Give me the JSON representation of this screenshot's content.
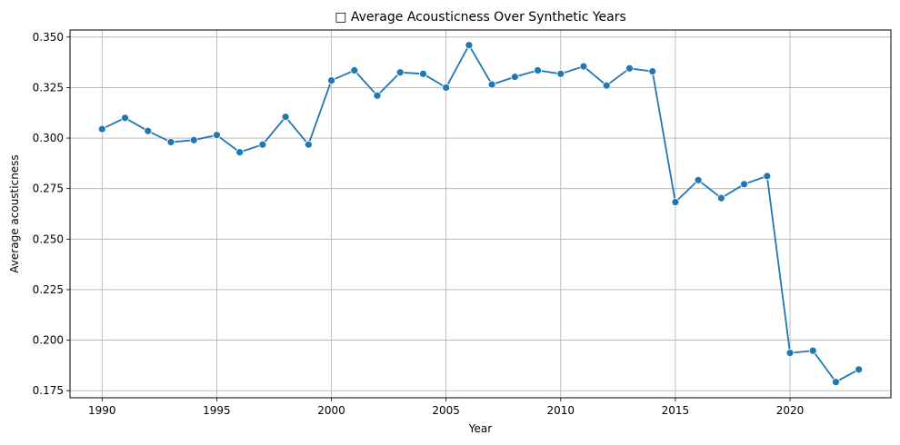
{
  "chart_data": {
    "type": "line",
    "title": "□ Average Acousticness Over Synthetic Years",
    "xlabel": "Year",
    "ylabel": "Average acousticness",
    "xlim": [
      1988.6,
      2024.4
    ],
    "ylim": [
      0.1715,
      0.3535
    ],
    "x_ticks": [
      1990,
      1995,
      2000,
      2005,
      2010,
      2015,
      2020
    ],
    "y_ticks": [
      0.175,
      0.2,
      0.225,
      0.25,
      0.275,
      0.3,
      0.325,
      0.35
    ],
    "y_tick_labels": [
      "0.175",
      "0.200",
      "0.225",
      "0.250",
      "0.275",
      "0.300",
      "0.325",
      "0.350"
    ],
    "grid": true,
    "legend": "none",
    "series": [
      {
        "color": "#1f77b4",
        "marker": "circle",
        "x": [
          1990,
          1991,
          1992,
          1993,
          1994,
          1995,
          1996,
          1997,
          1998,
          1999,
          2000,
          2001,
          2002,
          2003,
          2004,
          2005,
          2006,
          2007,
          2008,
          2009,
          2010,
          2011,
          2012,
          2013,
          2014,
          2015,
          2016,
          2017,
          2018,
          2019,
          2020,
          2021,
          2022,
          2023
        ],
        "y": [
          0.3045,
          0.31,
          0.3035,
          0.298,
          0.299,
          0.3015,
          0.293,
          0.2968,
          0.3105,
          0.2968,
          0.3285,
          0.3335,
          0.321,
          0.3325,
          0.3318,
          0.325,
          0.346,
          0.3265,
          0.3303,
          0.3335,
          0.3318,
          0.3355,
          0.326,
          0.3345,
          0.333,
          0.2683,
          0.2792,
          0.2703,
          0.2772,
          0.2812,
          0.1937,
          0.1948,
          0.1793,
          0.1855
        ]
      }
    ]
  }
}
